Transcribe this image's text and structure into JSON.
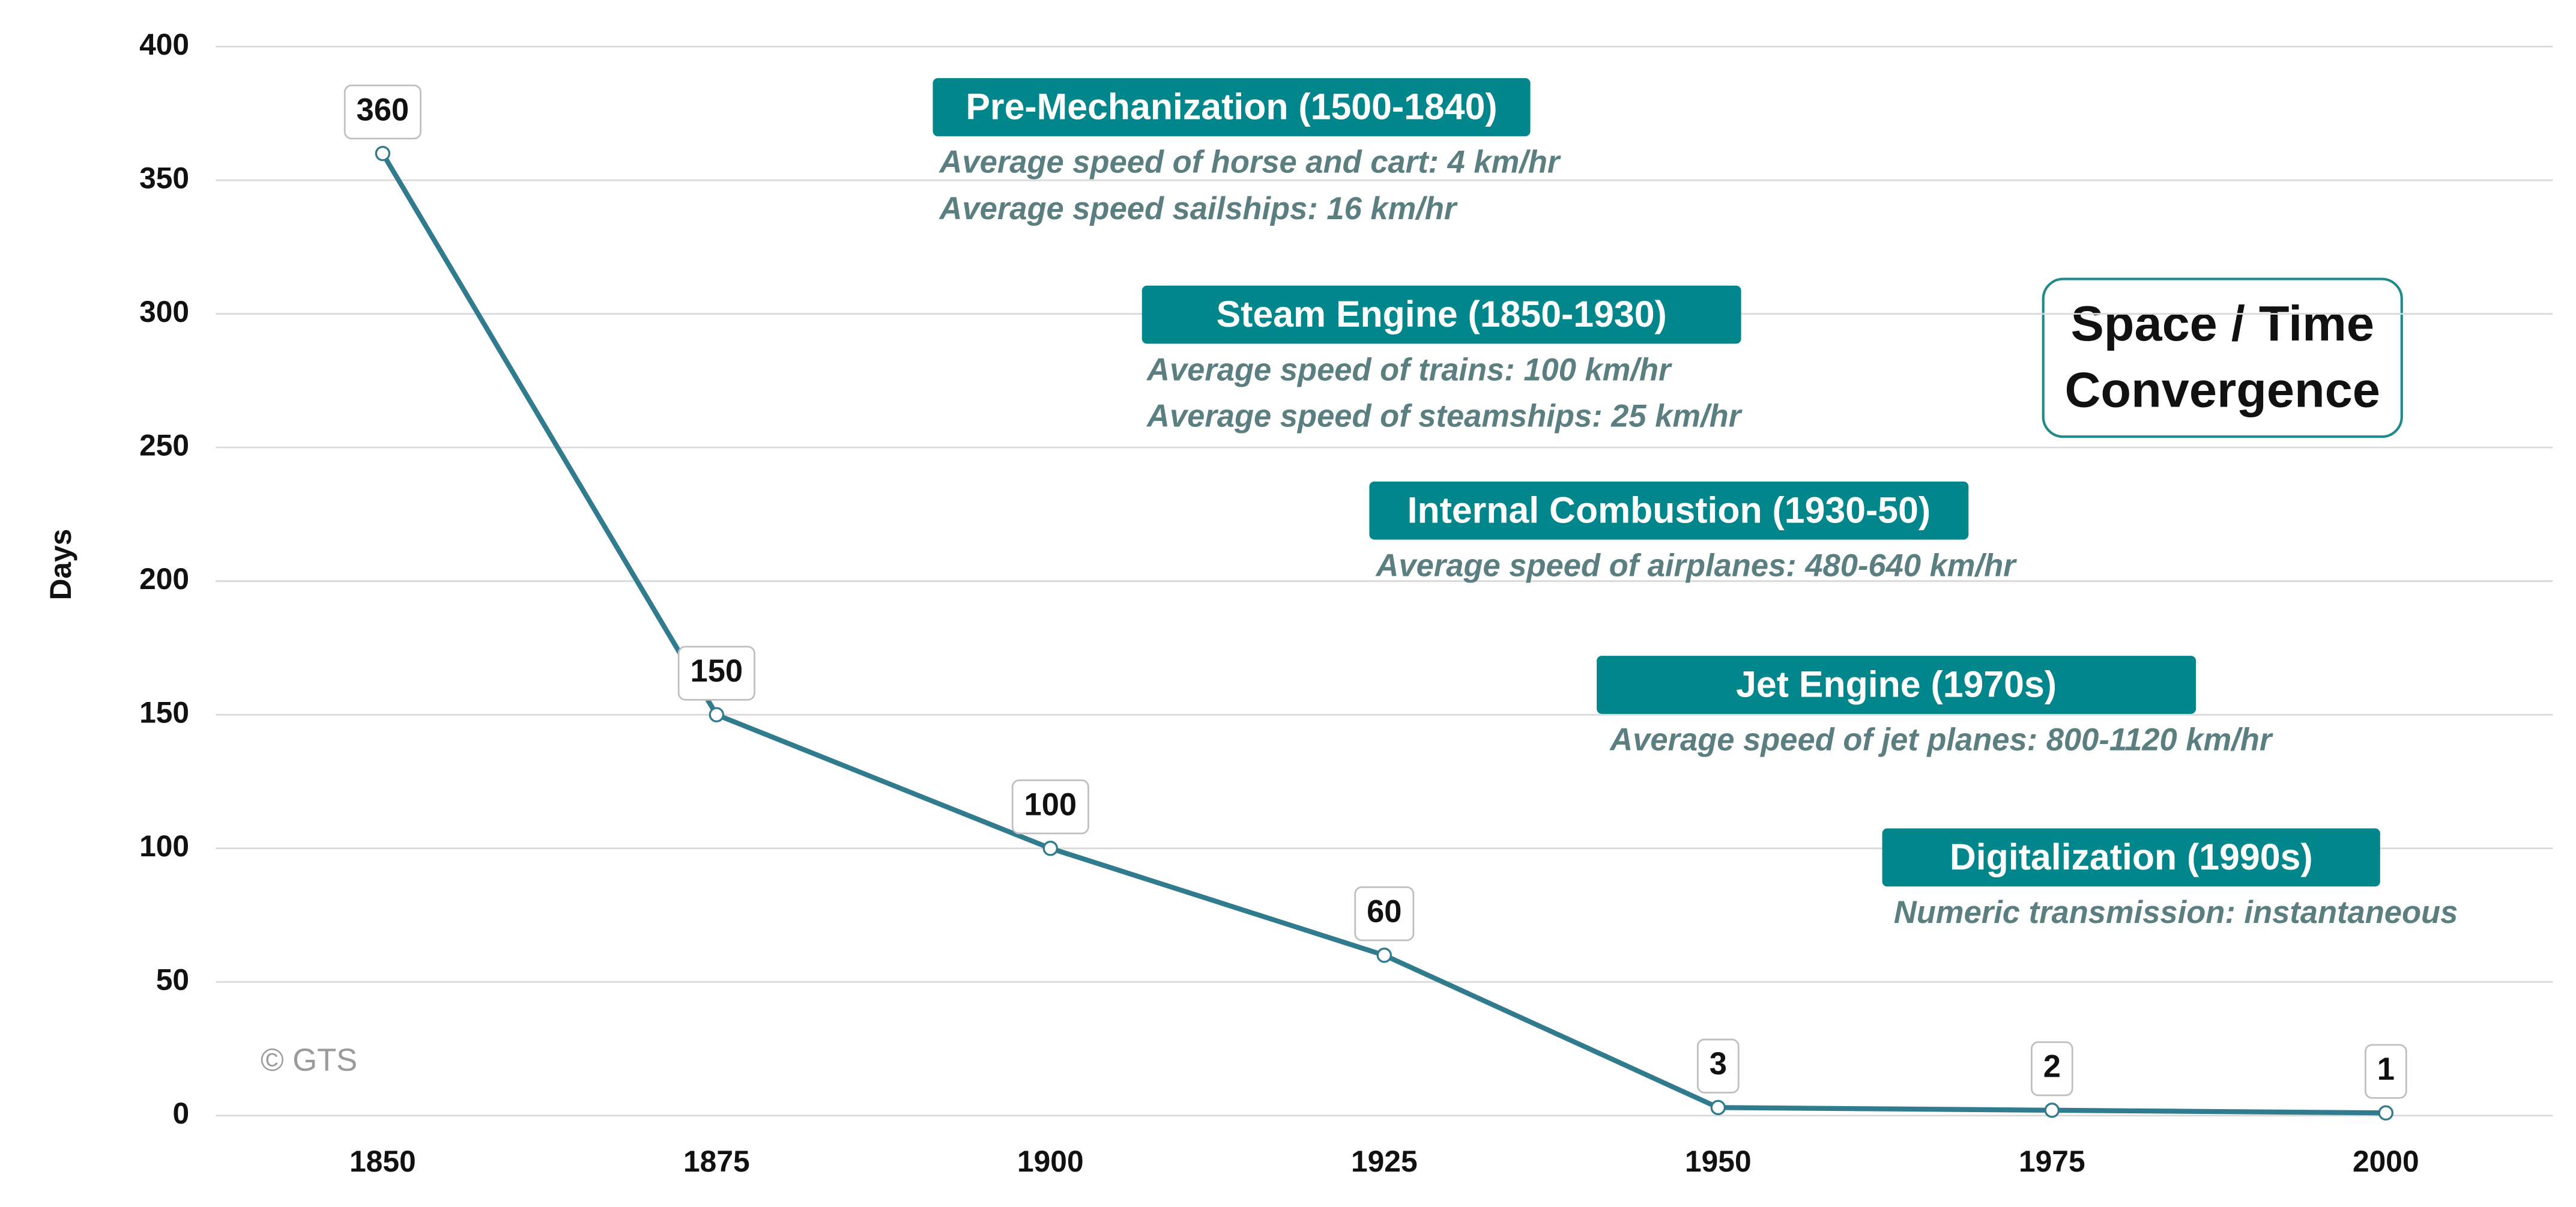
{
  "chart_data": {
    "type": "line",
    "title": "Space / Time Convergence",
    "y_label": "Days",
    "source": "© GTS",
    "categories": [
      "1850",
      "1875",
      "1900",
      "1925",
      "1950",
      "1975",
      "2000"
    ],
    "values": [
      360,
      150,
      100,
      60,
      3,
      2,
      1
    ],
    "color": "#317b8f",
    "ylim": [
      0,
      400
    ],
    "yticks": [
      0,
      50,
      100,
      150,
      200,
      250,
      300,
      350,
      400
    ],
    "grid": true,
    "annotations": [
      {
        "title": "Pre-Mechanization (1500-1840)",
        "lines": [
          "Average speed of horse and cart: 4 km/hr",
          "Average speed sailships: 16 km/hr"
        ]
      },
      {
        "title": "Steam Engine (1850-1930)",
        "lines": [
          "Average speed of trains: 100 km/hr",
          "Average speed of steamships: 25 km/hr"
        ]
      },
      {
        "title": "Internal Combustion (1930-50)",
        "lines": [
          "Average speed of airplanes: 480-640 km/hr"
        ]
      },
      {
        "title": "Jet Engine (1970s)",
        "lines": [
          "Average speed of jet planes: 800-1120 km/hr"
        ]
      },
      {
        "title": "Digitalization (1990s)",
        "lines": [
          "Numeric transmission: instantaneous"
        ]
      }
    ]
  }
}
